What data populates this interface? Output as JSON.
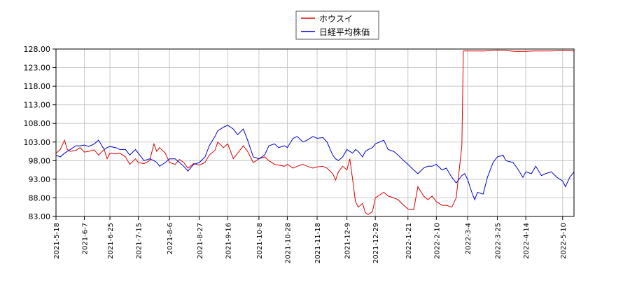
{
  "colors": {
    "background": "#ffffff",
    "grid": "#c8c8c8",
    "axis": "#000000",
    "legend_border": "#555555"
  },
  "chart_data": {
    "type": "line",
    "title": "",
    "xlabel": "",
    "ylabel": "",
    "grid": true,
    "legend_position": "top-center",
    "ylim": [
      83.0,
      128.0
    ],
    "y_ticks": [
      "83.00",
      "88.00",
      "93.00",
      "98.00",
      "103.00",
      "108.00",
      "113.00",
      "118.00",
      "123.00",
      "128.00"
    ],
    "x_range": [
      "2021-05-18",
      "2022-05-18"
    ],
    "x_ticks": [
      "2021-5-18",
      "2021-6-7",
      "2021-6-25",
      "2021-7-15",
      "2021-8-6",
      "2021-8-27",
      "2021-9-16",
      "2021-10-8",
      "2021-10-28",
      "2021-11-18",
      "2021-12-9",
      "2021-12-29",
      "2022-1-21",
      "2022-2-10",
      "2022-3-4",
      "2022-3-25",
      "2022-4-14",
      "2022-5-10"
    ],
    "series": [
      {
        "name": "ホウスイ",
        "color": "#dd0000",
        "points": [
          [
            "2021-05-18",
            100.0
          ],
          [
            "2021-05-21",
            101.0
          ],
          [
            "2021-05-24",
            103.5
          ],
          [
            "2021-05-26",
            101.0
          ],
          [
            "2021-05-28",
            100.5
          ],
          [
            "2021-06-01",
            100.8
          ],
          [
            "2021-06-04",
            101.5
          ],
          [
            "2021-06-07",
            100.3
          ],
          [
            "2021-06-10",
            100.5
          ],
          [
            "2021-06-14",
            100.9
          ],
          [
            "2021-06-17",
            99.5
          ],
          [
            "2021-06-21",
            101.0
          ],
          [
            "2021-06-23",
            98.5
          ],
          [
            "2021-06-25",
            100.0
          ],
          [
            "2021-06-29",
            99.8
          ],
          [
            "2021-07-02",
            100.0
          ],
          [
            "2021-07-06",
            99.0
          ],
          [
            "2021-07-09",
            97.0
          ],
          [
            "2021-07-13",
            98.5
          ],
          [
            "2021-07-15",
            97.5
          ],
          [
            "2021-07-19",
            97.2
          ],
          [
            "2021-07-23",
            98.0
          ],
          [
            "2021-07-26",
            102.5
          ],
          [
            "2021-07-28",
            100.5
          ],
          [
            "2021-07-30",
            101.5
          ],
          [
            "2021-08-03",
            100.0
          ],
          [
            "2021-08-06",
            97.5
          ],
          [
            "2021-08-10",
            97.0
          ],
          [
            "2021-08-13",
            98.3
          ],
          [
            "2021-08-16",
            97.5
          ],
          [
            "2021-08-19",
            96.0
          ],
          [
            "2021-08-23",
            97.2
          ],
          [
            "2021-08-27",
            96.8
          ],
          [
            "2021-08-31",
            97.5
          ],
          [
            "2021-09-03",
            99.5
          ],
          [
            "2021-09-07",
            100.8
          ],
          [
            "2021-09-09",
            103.0
          ],
          [
            "2021-09-13",
            101.5
          ],
          [
            "2021-09-16",
            102.5
          ],
          [
            "2021-09-20",
            98.5
          ],
          [
            "2021-09-23",
            100.0
          ],
          [
            "2021-09-27",
            102.0
          ],
          [
            "2021-09-30",
            100.5
          ],
          [
            "2021-10-04",
            97.5
          ],
          [
            "2021-10-08",
            98.5
          ],
          [
            "2021-10-12",
            99.0
          ],
          [
            "2021-10-15",
            98.0
          ],
          [
            "2021-10-19",
            97.0
          ],
          [
            "2021-10-22",
            96.8
          ],
          [
            "2021-10-26",
            96.5
          ],
          [
            "2021-10-28",
            97.0
          ],
          [
            "2021-11-01",
            96.0
          ],
          [
            "2021-11-04",
            96.5
          ],
          [
            "2021-11-08",
            97.0
          ],
          [
            "2021-11-11",
            96.5
          ],
          [
            "2021-11-15",
            96.0
          ],
          [
            "2021-11-18",
            96.3
          ],
          [
            "2021-11-22",
            96.5
          ],
          [
            "2021-11-25",
            96.0
          ],
          [
            "2021-11-29",
            94.5
          ],
          [
            "2021-12-01",
            92.8
          ],
          [
            "2021-12-03",
            95.0
          ],
          [
            "2021-12-06",
            96.5
          ],
          [
            "2021-12-09",
            95.5
          ],
          [
            "2021-12-11",
            98.5
          ],
          [
            "2021-12-13",
            93.0
          ],
          [
            "2021-12-15",
            87.0
          ],
          [
            "2021-12-17",
            85.5
          ],
          [
            "2021-12-20",
            86.5
          ],
          [
            "2021-12-22",
            84.0
          ],
          [
            "2021-12-24",
            83.5
          ],
          [
            "2021-12-27",
            84.3
          ],
          [
            "2021-12-29",
            88.0
          ],
          [
            "2022-01-04",
            89.5
          ],
          [
            "2022-01-07",
            88.5
          ],
          [
            "2022-01-11",
            88.0
          ],
          [
            "2022-01-14",
            87.5
          ],
          [
            "2022-01-18",
            86.0
          ],
          [
            "2022-01-21",
            85.0
          ],
          [
            "2022-01-25",
            84.8
          ],
          [
            "2022-01-28",
            91.0
          ],
          [
            "2022-02-01",
            88.5
          ],
          [
            "2022-02-04",
            87.5
          ],
          [
            "2022-02-07",
            88.5
          ],
          [
            "2022-02-10",
            87.0
          ],
          [
            "2022-02-14",
            86.0
          ],
          [
            "2022-02-17",
            86.0
          ],
          [
            "2022-02-21",
            85.5
          ],
          [
            "2022-02-24",
            88.0
          ],
          [
            "2022-02-28",
            102.0
          ],
          [
            "2022-03-01",
            127.5
          ],
          [
            "2022-03-04",
            127.5
          ],
          [
            "2022-03-10",
            127.5
          ],
          [
            "2022-03-16",
            127.5
          ],
          [
            "2022-03-22",
            127.6
          ],
          [
            "2022-03-25",
            127.7
          ],
          [
            "2022-03-31",
            127.6
          ],
          [
            "2022-04-06",
            127.4
          ],
          [
            "2022-04-14",
            127.4
          ],
          [
            "2022-04-20",
            127.5
          ],
          [
            "2022-04-26",
            127.5
          ],
          [
            "2022-05-02",
            127.5
          ],
          [
            "2022-05-10",
            127.6
          ],
          [
            "2022-05-18",
            127.5
          ]
        ]
      },
      {
        "name": "日経平均株価",
        "color": "#0000cc",
        "points": [
          [
            "2021-05-18",
            99.5
          ],
          [
            "2021-05-21",
            99.0
          ],
          [
            "2021-05-24",
            100.0
          ],
          [
            "2021-05-26",
            100.5
          ],
          [
            "2021-05-28",
            101.0
          ],
          [
            "2021-06-01",
            102.0
          ],
          [
            "2021-06-04",
            102.0
          ],
          [
            "2021-06-07",
            102.2
          ],
          [
            "2021-06-10",
            101.8
          ],
          [
            "2021-06-14",
            102.5
          ],
          [
            "2021-06-17",
            103.5
          ],
          [
            "2021-06-21",
            101.0
          ],
          [
            "2021-06-23",
            101.5
          ],
          [
            "2021-06-25",
            101.8
          ],
          [
            "2021-06-29",
            101.5
          ],
          [
            "2021-07-02",
            101.0
          ],
          [
            "2021-07-06",
            101.0
          ],
          [
            "2021-07-09",
            99.5
          ],
          [
            "2021-07-13",
            101.0
          ],
          [
            "2021-07-15",
            100.0
          ],
          [
            "2021-07-19",
            98.0
          ],
          [
            "2021-07-23",
            98.5
          ],
          [
            "2021-07-26",
            98.0
          ],
          [
            "2021-07-28",
            97.5
          ],
          [
            "2021-07-30",
            96.5
          ],
          [
            "2021-08-03",
            97.5
          ],
          [
            "2021-08-06",
            98.5
          ],
          [
            "2021-08-10",
            98.5
          ],
          [
            "2021-08-13",
            97.5
          ],
          [
            "2021-08-16",
            96.5
          ],
          [
            "2021-08-19",
            95.2
          ],
          [
            "2021-08-23",
            97.0
          ],
          [
            "2021-08-27",
            97.5
          ],
          [
            "2021-08-31",
            99.0
          ],
          [
            "2021-09-03",
            102.0
          ],
          [
            "2021-09-07",
            104.5
          ],
          [
            "2021-09-09",
            106.0
          ],
          [
            "2021-09-13",
            107.0
          ],
          [
            "2021-09-16",
            107.5
          ],
          [
            "2021-09-20",
            106.5
          ],
          [
            "2021-09-23",
            105.0
          ],
          [
            "2021-09-27",
            106.5
          ],
          [
            "2021-09-30",
            103.5
          ],
          [
            "2021-10-04",
            99.0
          ],
          [
            "2021-10-08",
            98.5
          ],
          [
            "2021-10-12",
            99.5
          ],
          [
            "2021-10-15",
            102.0
          ],
          [
            "2021-10-19",
            102.5
          ],
          [
            "2021-10-22",
            101.5
          ],
          [
            "2021-10-26",
            102.0
          ],
          [
            "2021-10-28",
            101.5
          ],
          [
            "2021-11-01",
            104.0
          ],
          [
            "2021-11-04",
            104.5
          ],
          [
            "2021-11-08",
            103.0
          ],
          [
            "2021-11-11",
            103.5
          ],
          [
            "2021-11-15",
            104.5
          ],
          [
            "2021-11-18",
            104.0
          ],
          [
            "2021-11-22",
            104.2
          ],
          [
            "2021-11-25",
            103.0
          ],
          [
            "2021-11-29",
            99.5
          ],
          [
            "2021-12-01",
            98.5
          ],
          [
            "2021-12-03",
            98.0
          ],
          [
            "2021-12-06",
            99.0
          ],
          [
            "2021-12-09",
            101.0
          ],
          [
            "2021-12-11",
            100.5
          ],
          [
            "2021-12-13",
            100.0
          ],
          [
            "2021-12-15",
            101.0
          ],
          [
            "2021-12-17",
            100.5
          ],
          [
            "2021-12-20",
            99.0
          ],
          [
            "2021-12-22",
            100.5
          ],
          [
            "2021-12-24",
            101.0
          ],
          [
            "2021-12-27",
            101.5
          ],
          [
            "2021-12-29",
            102.5
          ],
          [
            "2022-01-04",
            103.5
          ],
          [
            "2022-01-07",
            101.0
          ],
          [
            "2022-01-11",
            100.5
          ],
          [
            "2022-01-14",
            99.5
          ],
          [
            "2022-01-18",
            98.0
          ],
          [
            "2022-01-21",
            97.0
          ],
          [
            "2022-01-25",
            95.5
          ],
          [
            "2022-01-28",
            94.5
          ],
          [
            "2022-02-01",
            96.0
          ],
          [
            "2022-02-04",
            96.5
          ],
          [
            "2022-02-07",
            96.5
          ],
          [
            "2022-02-10",
            97.0
          ],
          [
            "2022-02-14",
            95.5
          ],
          [
            "2022-02-17",
            96.0
          ],
          [
            "2022-02-21",
            93.5
          ],
          [
            "2022-02-24",
            92.0
          ],
          [
            "2022-02-28",
            94.0
          ],
          [
            "2022-03-02",
            94.5
          ],
          [
            "2022-03-04",
            93.0
          ],
          [
            "2022-03-07",
            89.5
          ],
          [
            "2022-03-09",
            87.5
          ],
          [
            "2022-03-11",
            89.5
          ],
          [
            "2022-03-15",
            89.0
          ],
          [
            "2022-03-18",
            93.5
          ],
          [
            "2022-03-22",
            97.5
          ],
          [
            "2022-03-25",
            99.0
          ],
          [
            "2022-03-29",
            99.5
          ],
          [
            "2022-03-31",
            98.0
          ],
          [
            "2022-04-05",
            97.5
          ],
          [
            "2022-04-08",
            96.0
          ],
          [
            "2022-04-12",
            93.5
          ],
          [
            "2022-04-14",
            95.0
          ],
          [
            "2022-04-18",
            94.5
          ],
          [
            "2022-04-21",
            96.5
          ],
          [
            "2022-04-25",
            94.0
          ],
          [
            "2022-04-28",
            94.5
          ],
          [
            "2022-05-02",
            95.0
          ],
          [
            "2022-05-06",
            93.5
          ],
          [
            "2022-05-10",
            92.5
          ],
          [
            "2022-05-12",
            91.0
          ],
          [
            "2022-05-15",
            93.5
          ],
          [
            "2022-05-18",
            95.0
          ]
        ]
      }
    ]
  }
}
